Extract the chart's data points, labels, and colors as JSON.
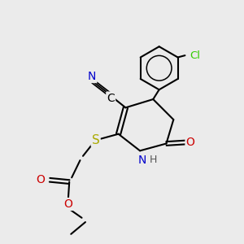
{
  "bg_color": "#ebebeb",
  "atom_colors": {
    "C": "#000000",
    "N": "#0000cc",
    "O": "#cc0000",
    "S": "#aaaa00",
    "Cl": "#33cc00",
    "H": "#555555"
  },
  "bond_color": "#000000",
  "figsize": [
    3.0,
    3.0
  ],
  "dpi": 100
}
